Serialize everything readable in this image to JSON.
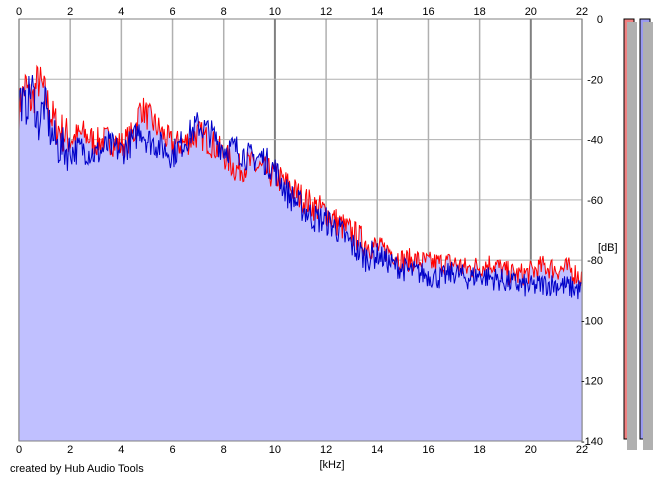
{
  "credit": "created by Hub Audio Tools",
  "colors": {
    "background": "#ffffff",
    "fill": "#c0c0ff",
    "grid": "#b0b0b0",
    "grid_major": "#808080",
    "left_channel": "#ff0000",
    "right_channel": "#0000c8",
    "meter_left": "#f08080",
    "meter_right": "#9a9af0"
  },
  "chart_data": {
    "type": "line",
    "title": "",
    "xlabel": "[kHz]",
    "ylabel": "[dB]",
    "xlim": [
      0,
      22
    ],
    "ylim": [
      -140,
      0
    ],
    "x_ticks": [
      "0",
      "2",
      "4",
      "6",
      "8",
      "10",
      "12",
      "14",
      "16",
      "18",
      "20",
      "22"
    ],
    "y_ticks": [
      "0",
      "-20",
      "-40",
      "-60",
      "-80",
      "-100",
      "-120",
      "-140"
    ],
    "x_tick_values": [
      0,
      2,
      4,
      6,
      8,
      10,
      12,
      14,
      16,
      18,
      20,
      22
    ],
    "y_tick_values": [
      0,
      -20,
      -40,
      -60,
      -80,
      -100,
      -120,
      -140
    ],
    "grid": true,
    "legend": "none",
    "x": [
      0,
      0.25,
      0.5,
      0.75,
      1,
      1.25,
      1.5,
      2,
      2.5,
      3,
      3.5,
      4,
      4.5,
      4.75,
      5,
      5.5,
      6,
      6.5,
      7,
      7.5,
      8,
      8.5,
      9,
      9.5,
      10,
      10.5,
      11,
      11.5,
      12,
      12.5,
      13,
      13.5,
      14,
      14.5,
      15,
      15.5,
      16,
      16.5,
      17,
      17.5,
      18,
      18.5,
      19,
      19.5,
      20,
      20.5,
      21,
      21.5,
      22
    ],
    "series": [
      {
        "values": [
          -30,
          -22,
          -28,
          -20,
          -25,
          -32,
          -36,
          -40,
          -38,
          -41,
          -40,
          -42,
          -38,
          -29,
          -32,
          -37,
          -42,
          -41,
          -38,
          -41,
          -45,
          -50,
          -48,
          -50,
          -52,
          -55,
          -59,
          -62,
          -64,
          -68,
          -71,
          -74,
          -76,
          -77,
          -80,
          -80,
          -81,
          -81,
          -81,
          -83,
          -82,
          -81,
          -84,
          -85,
          -84,
          -82,
          -83,
          -83,
          -86
        ]
      },
      {
        "values": [
          -25,
          -30,
          -22,
          -35,
          -28,
          -38,
          -42,
          -44,
          -43,
          -45,
          -42,
          -44,
          -40,
          -36,
          -40,
          -42,
          -45,
          -40,
          -35,
          -38,
          -43,
          -43,
          -46,
          -46,
          -50,
          -58,
          -62,
          -66,
          -67,
          -70,
          -75,
          -79,
          -78,
          -81,
          -83,
          -84,
          -85,
          -86,
          -84,
          -86,
          -85,
          -86,
          -87,
          -88,
          -89,
          -88,
          -88,
          -89,
          -90
        ]
      }
    ]
  }
}
